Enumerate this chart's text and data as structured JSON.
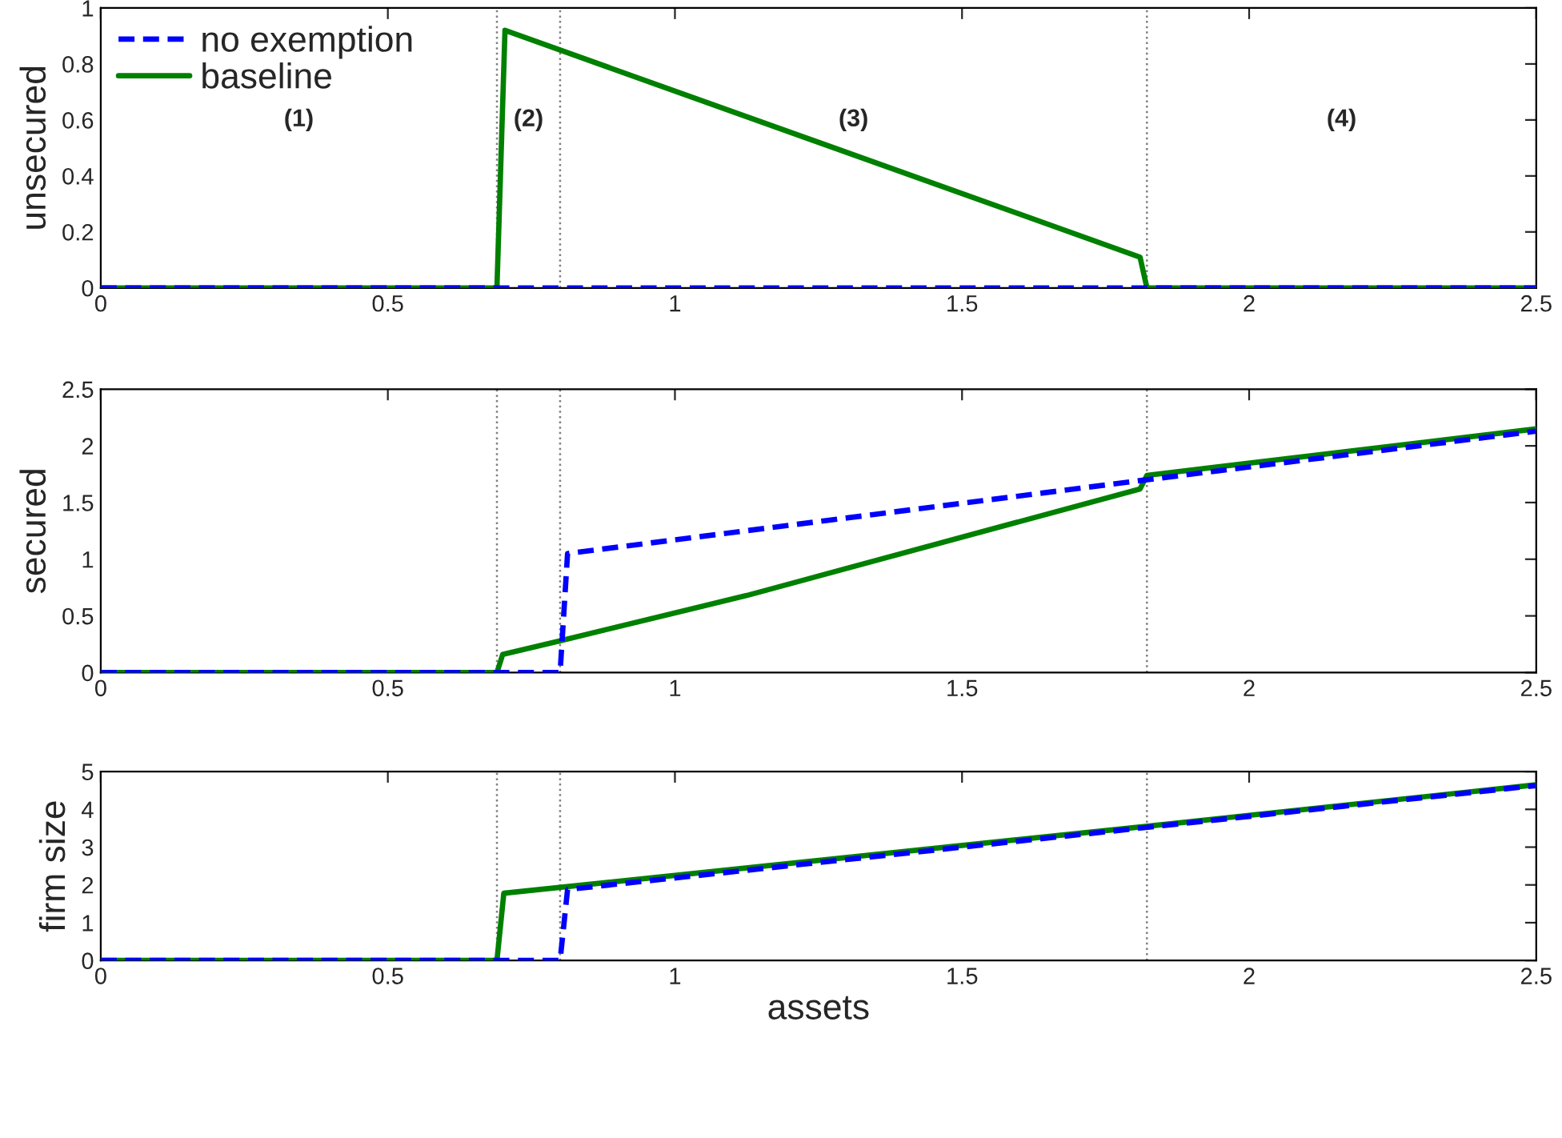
{
  "chart_data": [
    {
      "type": "line",
      "ylabel": "unsecured",
      "xlim": [
        0,
        2.5
      ],
      "ylim": [
        0,
        1
      ],
      "xticks": [
        0,
        0.5,
        1,
        1.5,
        2,
        2.5
      ],
      "yticks": [
        0,
        0.2,
        0.4,
        0.6,
        0.8,
        1
      ],
      "grid": false,
      "legend": "top left",
      "marker": "none",
      "series": [
        {
          "name": "no exemption",
          "color": "#0000ff",
          "line_style": "dashed",
          "x": [
            0,
            2.5
          ],
          "values": [
            0,
            0
          ]
        },
        {
          "name": "baseline",
          "color": "#008000",
          "line_style": "solid",
          "x": [
            0,
            0.69,
            0.704,
            1.81,
            1.822,
            2.5
          ],
          "values": [
            0,
            0,
            0.92,
            0.11,
            0,
            0
          ]
        }
      ],
      "ref_lines": [
        {
          "axis": "x",
          "value": 0.69,
          "line_style": "dotted",
          "color": "#808080"
        },
        {
          "axis": "x",
          "value": 0.8,
          "line_style": "dotted",
          "color": "#808080"
        },
        {
          "axis": "x",
          "value": 1.822,
          "line_style": "dotted",
          "color": "#808080"
        }
      ],
      "annotations": [
        "(1)",
        "(2)",
        "(3)",
        "(4)"
      ]
    },
    {
      "type": "line",
      "ylabel": "secured",
      "xlim": [
        0,
        2.5
      ],
      "ylim": [
        0,
        2.5
      ],
      "xticks": [
        0,
        0.5,
        1,
        1.5,
        2,
        2.5
      ],
      "yticks": [
        0,
        0.5,
        1,
        1.5,
        2,
        2.5
      ],
      "grid": false,
      "marker": "none",
      "series": [
        {
          "color": "#0000ff",
          "line_style": "dashed",
          "x": [
            0,
            0.8,
            0.813,
            1.82,
            2.5
          ],
          "values": [
            0,
            0,
            1.05,
            1.7,
            2.13
          ]
        },
        {
          "color": "#008000",
          "line_style": "solid",
          "x": [
            0,
            0.69,
            0.7,
            0.8,
            1.125,
            1.81,
            1.822,
            2.5
          ],
          "values": [
            0,
            0,
            0.16,
            0.28,
            0.68,
            1.62,
            1.74,
            2.15
          ]
        }
      ],
      "ref_lines": [
        {
          "axis": "x",
          "value": 0.69,
          "line_style": "dotted",
          "color": "#808080"
        },
        {
          "axis": "x",
          "value": 0.8,
          "line_style": "dotted",
          "color": "#808080"
        },
        {
          "axis": "x",
          "value": 1.822,
          "line_style": "dotted",
          "color": "#808080"
        }
      ]
    },
    {
      "type": "line",
      "ylabel": "firm size",
      "xlabel": "assets",
      "xlim": [
        0,
        2.5
      ],
      "ylim": [
        0,
        5
      ],
      "xticks": [
        0,
        0.5,
        1,
        1.5,
        2,
        2.5
      ],
      "yticks": [
        0,
        1,
        2,
        3,
        4,
        5
      ],
      "grid": false,
      "marker": "none",
      "series": [
        {
          "color": "#0000ff",
          "line_style": "dashed",
          "x": [
            0,
            0.8,
            0.813,
            1.82,
            2.5
          ],
          "values": [
            0,
            0,
            1.88,
            3.52,
            4.63
          ]
        },
        {
          "color": "#008000",
          "line_style": "solid",
          "x": [
            0,
            0.69,
            0.702,
            1.82,
            2.5
          ],
          "values": [
            0,
            0,
            1.78,
            3.55,
            4.65
          ]
        }
      ],
      "ref_lines": [
        {
          "axis": "x",
          "value": 0.69,
          "line_style": "dotted",
          "color": "#808080"
        },
        {
          "axis": "x",
          "value": 0.8,
          "line_style": "dotted",
          "color": "#808080"
        },
        {
          "axis": "x",
          "value": 1.822,
          "line_style": "dotted",
          "color": "#808080"
        }
      ]
    }
  ]
}
